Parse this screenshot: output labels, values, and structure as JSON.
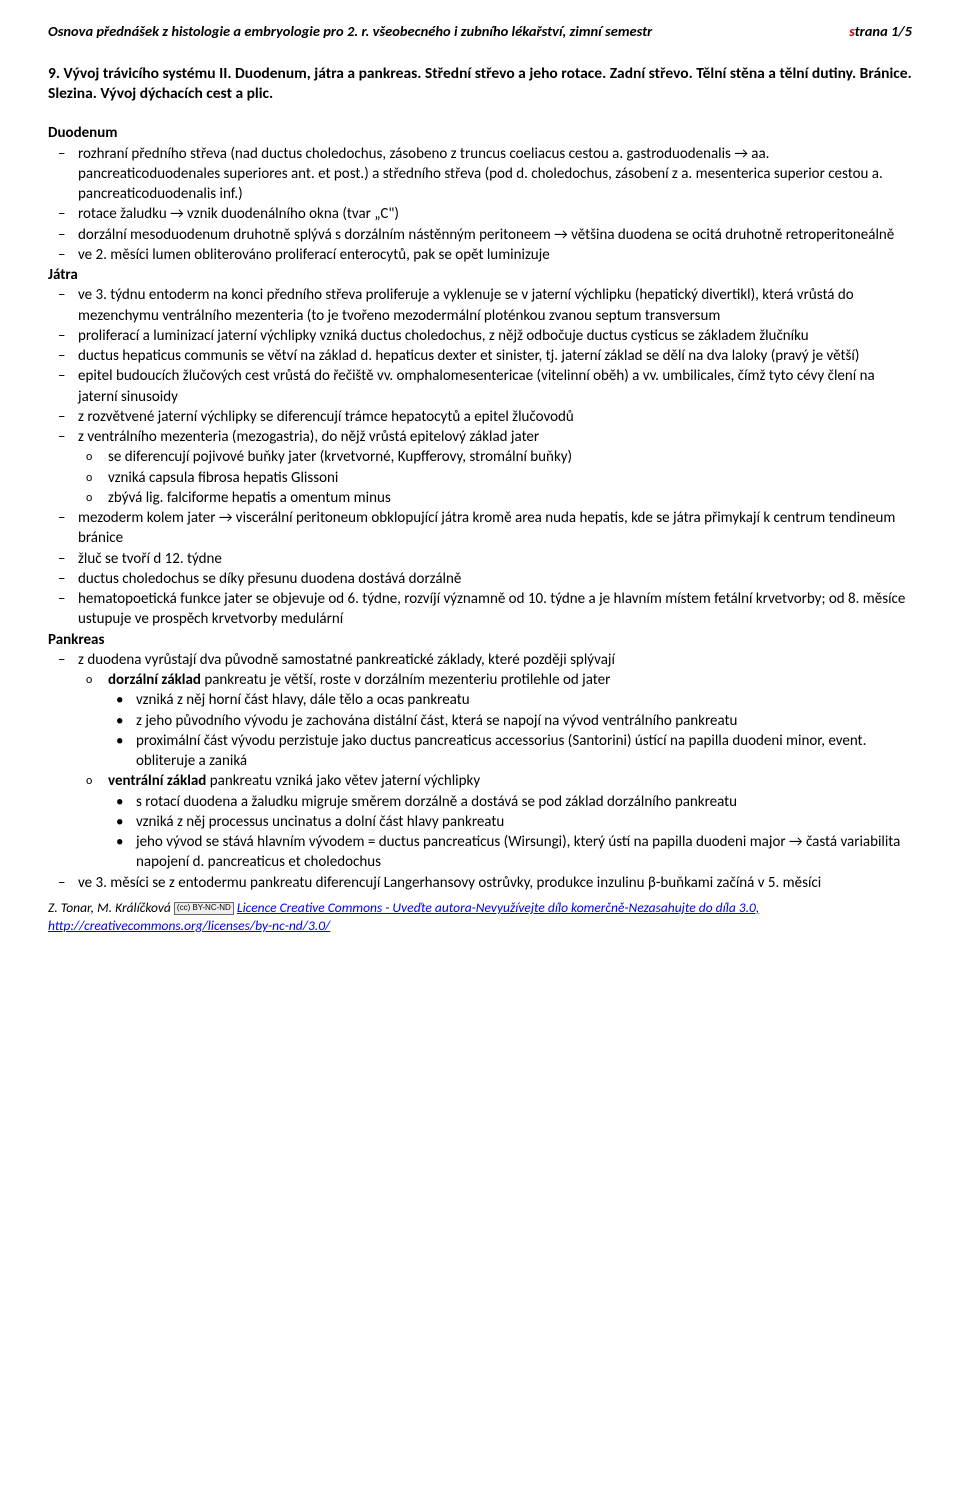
{
  "header": {
    "left": "Osnova přednášek z histologie a embryologie pro 2. r. všeobecného i zubního lékařství, zimní semestr",
    "page_s": "s",
    "page_rest": "trana 1/5"
  },
  "title": "9. Vývoj trávicího systému II. Duodenum, játra a pankreas. Střední střevo a jeho rotace. Zadní střevo. Tělní stěna a tělní dutiny. Bránice. Slezina. Vývoj dýchacích cest a plic.",
  "sections": {
    "duodenum": {
      "head": "Duodenum",
      "items": [
        "rozhraní předního střeva (nad ductus choledochus, zásobeno z truncus coeliacus cestou a. gastroduodenalis → aa. pancreaticoduodenales superiores ant. et post.) a středního střeva (pod d. choledochus, zásobení z a. mesenterica superior cestou a. pancreaticoduodenalis inf.)",
        "rotace žaludku → vznik duodenálního okna (tvar „C\")",
        "dorzální mesoduodenum druhotně splývá s dorzálním nástěnným peritoneem → většina duodena se ocitá druhotně retroperitoneálně",
        "ve 2. měsíci lumen obliterováno proliferací enterocytů, pak se opět luminizuje"
      ]
    },
    "jatra": {
      "head": "Játra",
      "items": [
        "ve 3. týdnu entoderm na konci předního střeva proliferuje a vyklenuje se v jaterní výchlipku (hepatický divertikl), která vrůstá do mezenchymu ventrálního mezenteria (to je tvořeno mezodermální ploténkou zvanou septum transversum",
        "proliferací a luminizací jaterní výchlipky vzniká ductus choledochus, z nějž odbočuje ductus cysticus se základem žlučníku",
        "ductus hepaticus communis se větví na základ d. hepaticus dexter et sinister, tj. jaterní základ se dělí na dva laloky (pravý je větší)",
        "epitel budoucích žlučových cest vrůstá do řečiště vv. omphalomesentericae (vitelinní oběh) a vv. umbilicales, čímž tyto cévy člení na jaterní sinusoidy",
        "z rozvětvené jaterní výchlipky se diferencují trámce hepatocytů a epitel žlučovodů",
        "z ventrálního mezenteria (mezogastria), do nějž vrůstá epitelový základ jater",
        "mezoderm kolem jater → viscerální peritoneum obklopující játra kromě area nuda hepatis, kde se játra přimykají k centrum tendineum bránice",
        "žluč se tvoří d 12. týdne",
        "ductus choledochus se díky přesunu duodena dostává dorzálně",
        "hematopoetická funkce jater se objevuje od 6. týdne, rozvíjí významně od 10. týdne a je hlavním místem fetální krvetvorby; od 8. měsíce ustupuje ve prospěch krvetvorby medulární"
      ],
      "sub6": [
        "se diferencují pojivové buňky jater (krvetvorné, Kupfferovy, stromální buňky)",
        "vzniká capsula fibrosa hepatis Glissoni",
        "zbývá lig. falciforme hepatis a omentum minus"
      ]
    },
    "pankreas": {
      "head": "Pankreas",
      "item0": "z duodena vyrůstají dva původně samostatné pankreatické základy, které později splývají",
      "dorz_label": "dorzální základ",
      "dorz_rest": " pankreatu je větší, roste v dorzálním mezenteriu protilehle od jater",
      "dorz_bullets": [
        "vzniká z něj horní část hlavy, dále tělo a ocas pankreatu",
        "z jeho původního vývodu je zachována distální část, která se napojí na vývod ventrálního pankreatu",
        "proximální část vývodu perzistuje jako ductus pancreaticus accessorius (Santorini) ústící na papilla duodeni minor, event. obliteruje a zaniká"
      ],
      "ventr_label": "ventrální základ",
      "ventr_rest": " pankreatu vzniká jako větev jaterní výchlipky",
      "ventr_bullets": [
        "s rotací duodena a žaludku migruje směrem dorzálně a dostává se pod základ dorzálního pankreatu",
        "vzniká z něj processus uncinatus a dolní část hlavy pankreatu",
        "jeho vývod se stává hlavním vývodem = ductus pancreaticus (Wirsungi), který ústí na papilla duodeni major → častá variabilita napojení d. pancreaticus et choledochus"
      ],
      "item_last": "ve 3. měsíci se z entodermu pankreatu diferencují Langerhansovy ostrůvky, produkce inzulinu β-buňkami začíná v 5. měsíci"
    }
  },
  "footer": {
    "authors": "Z. Tonar, M. Králíčková ",
    "cc_text": "(cc) BY-NC-ND",
    "link": "Licence Creative Commons - Uveďte autora-Nevyužívejte dílo komerčně-Nezasahujte do díla 3.0, http://creativecommons.org/licenses/by-nc-nd/3.0/"
  }
}
